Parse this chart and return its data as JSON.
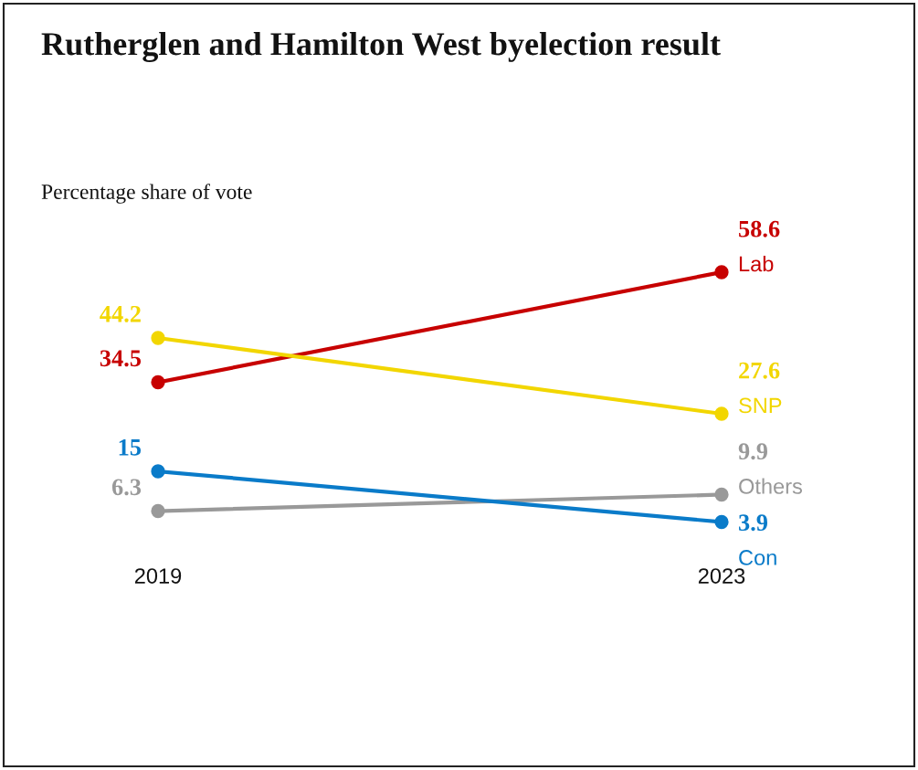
{
  "chart_data": {
    "type": "line",
    "title": "Rutherglen and Hamilton West byelection result",
    "subtitle": "Percentage share of vote",
    "categories": [
      "2019",
      "2023"
    ],
    "series": [
      {
        "name": "Lab",
        "color": "#c70000",
        "values": [
          34.5,
          58.6
        ]
      },
      {
        "name": "SNP",
        "color": "#f2d600",
        "values": [
          44.2,
          27.6
        ]
      },
      {
        "name": "Others",
        "color": "#999999",
        "values": [
          6.3,
          9.9
        ]
      },
      {
        "name": "Con",
        "color": "#0a7bc9",
        "values": [
          15,
          3.9
        ]
      }
    ],
    "data_labels": true,
    "marker": "circle",
    "grid": false,
    "legend": false,
    "tick_labels": "x"
  }
}
